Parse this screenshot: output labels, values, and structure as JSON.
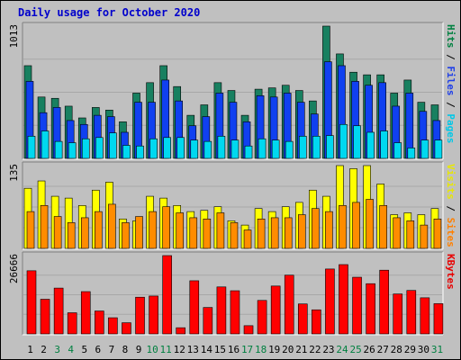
{
  "chart_data": {
    "type": "bar",
    "title": "Daily usage for October 2020",
    "categories": [
      "1",
      "2",
      "3",
      "4",
      "5",
      "6",
      "7",
      "8",
      "9",
      "10",
      "11",
      "12",
      "13",
      "14",
      "15",
      "16",
      "17",
      "18",
      "19",
      "20",
      "21",
      "22",
      "23",
      "24",
      "25",
      "26",
      "27",
      "28",
      "29",
      "30",
      "31"
    ],
    "weekend_days": [
      "3",
      "4",
      "10",
      "11",
      "17",
      "18",
      "24",
      "25",
      "31"
    ],
    "panels": [
      {
        "id": "hits",
        "ymax_label": "1013",
        "ymax": 1013,
        "legend": [
          {
            "text": "Pages",
            "color": "#00c8e8"
          },
          {
            "text": " / ",
            "color": "#000000"
          },
          {
            "text": "Files",
            "color": "#2040e8"
          },
          {
            "text": " / ",
            "color": "#000000"
          },
          {
            "text": "Hits",
            "color": "#008040"
          }
        ],
        "series": [
          {
            "name": "Hits",
            "color": "#188060",
            "values": [
              710,
              470,
              460,
              400,
              310,
              390,
              370,
              280,
              500,
              580,
              710,
              550,
              330,
              410,
              580,
              520,
              330,
              530,
              540,
              560,
              520,
              440,
              1013,
              800,
              660,
              640,
              640,
              500,
              600,
              430,
              410
            ]
          },
          {
            "name": "Files",
            "color": "#1040f0",
            "values": [
              590,
              350,
              390,
              290,
              260,
              330,
              320,
              200,
              430,
              430,
              600,
              440,
              250,
              320,
              500,
              430,
              280,
              480,
              470,
              500,
              430,
              340,
              740,
              710,
              590,
              560,
              580,
              400,
              500,
              360,
              290
            ]
          },
          {
            "name": "Pages",
            "color": "#00d8f0",
            "values": [
              170,
              210,
              130,
              120,
              150,
              160,
              195,
              100,
              95,
              150,
              160,
              160,
              140,
              130,
              170,
              140,
              95,
              150,
              140,
              130,
              170,
              170,
              175,
              260,
              250,
              200,
              210,
              120,
              80,
              140,
              140
            ]
          }
        ]
      },
      {
        "id": "visits",
        "ymax_label": "135",
        "ymax": 135,
        "legend": [
          {
            "text": "Sites",
            "color": "#ff8000"
          },
          {
            "text": " / ",
            "color": "#000000"
          },
          {
            "text": "Visits",
            "color": "#e8e800"
          }
        ],
        "series": [
          {
            "name": "Visits",
            "color": "#ffff00",
            "values": [
              98,
              110,
              85,
              82,
              70,
              95,
              108,
              48,
              45,
              85,
              82,
              70,
              60,
              62,
              68,
              45,
              38,
              65,
              60,
              68,
              75,
              95,
              85,
              135,
              130,
              135,
              105,
              55,
              58,
              55,
              65
            ]
          },
          {
            "name": "Sites",
            "color": "#ff8c00",
            "values": [
              60,
              70,
              52,
              42,
              50,
              60,
              72,
              42,
              52,
              60,
              68,
              58,
              50,
              48,
              58,
              42,
              30,
              48,
              50,
              50,
              55,
              65,
              60,
              70,
              75,
              80,
              70,
              50,
              45,
              38,
              48
            ]
          }
        ]
      },
      {
        "id": "kbytes",
        "ymax_label": "26666",
        "ymax": 26666,
        "legend": [
          {
            "text": "KBytes",
            "color": "#e80000"
          }
        ],
        "series": [
          {
            "name": "KBytes",
            "color": "#ff0000",
            "values": [
              21500,
              11800,
              15600,
              7200,
              14400,
              7800,
              5500,
              3800,
              12500,
              12900,
              26666,
              2100,
              18100,
              9000,
              16000,
              14700,
              2800,
              11400,
              16300,
              20000,
              10200,
              8200,
              22100,
              23600,
              19300,
              17100,
              21700,
              13600,
              14800,
              12300,
              10300
            ]
          }
        ]
      }
    ]
  }
}
